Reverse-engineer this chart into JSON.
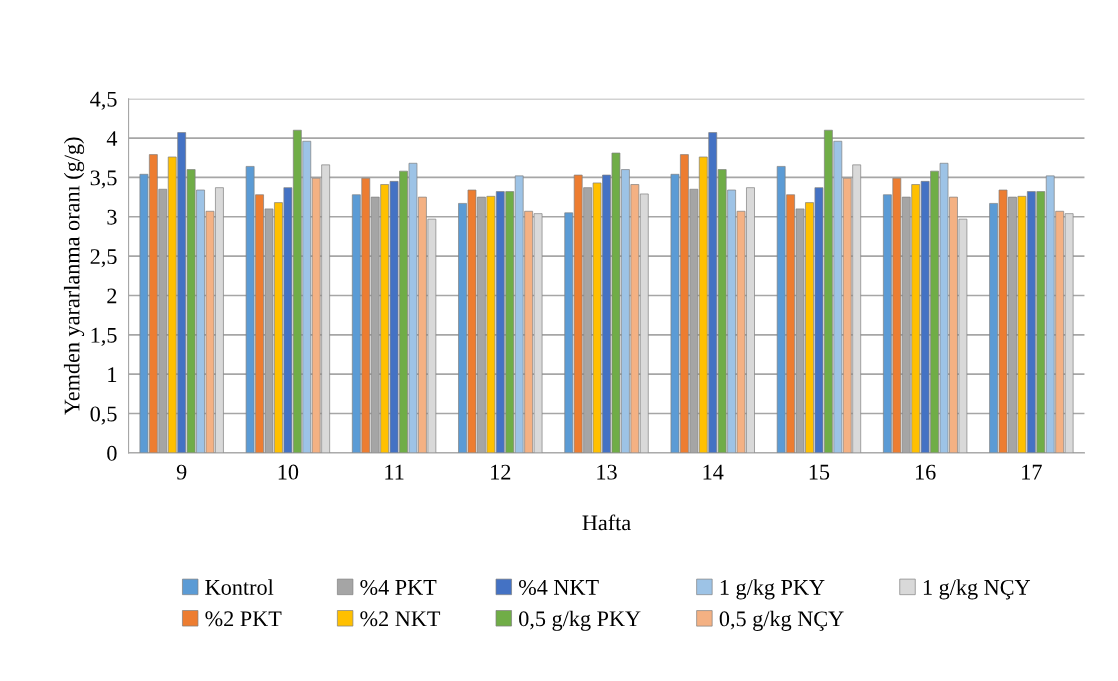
{
  "chart_data": {
    "type": "bar",
    "xlabel": "Hafta",
    "ylabel": "Yemden yararlanma oranı (g/g)",
    "categories": [
      "9",
      "10",
      "11",
      "12",
      "13",
      "14",
      "15",
      "16",
      "17"
    ],
    "ylim": [
      0,
      4.5
    ],
    "yticks": [
      0,
      {
        "value": 0.5,
        "label": "0,5"
      },
      1,
      {
        "value": 1.5,
        "label": "1,5"
      },
      2,
      {
        "value": 2.5,
        "label": "2,5"
      },
      3,
      {
        "value": 3.5,
        "label": "3,5"
      },
      4,
      {
        "value": 4.5,
        "label": "4,5"
      }
    ],
    "grid": "y",
    "legend": "bottom",
    "series": [
      {
        "name": "Kontrol",
        "color": "#5b9bd5",
        "values": [
          3.54,
          3.64,
          3.28,
          3.17,
          3.05,
          3.54,
          3.64,
          3.28,
          3.17
        ]
      },
      {
        "name": "%2 PKT",
        "color": "#ed7d31",
        "values": [
          3.79,
          3.28,
          3.49,
          3.34,
          3.53,
          3.79,
          3.28,
          3.49,
          3.34
        ]
      },
      {
        "name": "%4 PKT",
        "color": "#a5a5a5",
        "values": [
          3.35,
          3.1,
          3.25,
          3.25,
          3.37,
          3.35,
          3.1,
          3.25,
          3.25
        ]
      },
      {
        "name": "%2 NKT",
        "color": "#ffc000",
        "values": [
          3.76,
          3.18,
          3.41,
          3.26,
          3.43,
          3.76,
          3.18,
          3.41,
          3.26
        ]
      },
      {
        "name": "%4 NKT",
        "color": "#4472c4",
        "values": [
          4.07,
          3.37,
          3.45,
          3.32,
          3.53,
          4.07,
          3.37,
          3.45,
          3.32
        ]
      },
      {
        "name": "0,5 g/kg PKY",
        "color": "#70ad47",
        "values": [
          3.6,
          4.1,
          3.58,
          3.32,
          3.81,
          3.6,
          4.1,
          3.58,
          3.32
        ]
      },
      {
        "name": "1 g/kg PKY",
        "color": "#9dc3e6",
        "values": [
          3.34,
          3.96,
          3.68,
          3.52,
          3.6,
          3.34,
          3.96,
          3.68,
          3.52
        ]
      },
      {
        "name": "0,5 g/kg NÇY",
        "color": "#f4b183",
        "values": [
          3.07,
          3.49,
          3.25,
          3.07,
          3.41,
          3.07,
          3.49,
          3.25,
          3.07
        ]
      },
      {
        "name": "1 g/kg NÇY",
        "color": "#d9d9d9",
        "values": [
          3.37,
          3.66,
          2.97,
          3.04,
          3.29,
          3.37,
          3.66,
          2.97,
          3.04
        ]
      }
    ]
  }
}
